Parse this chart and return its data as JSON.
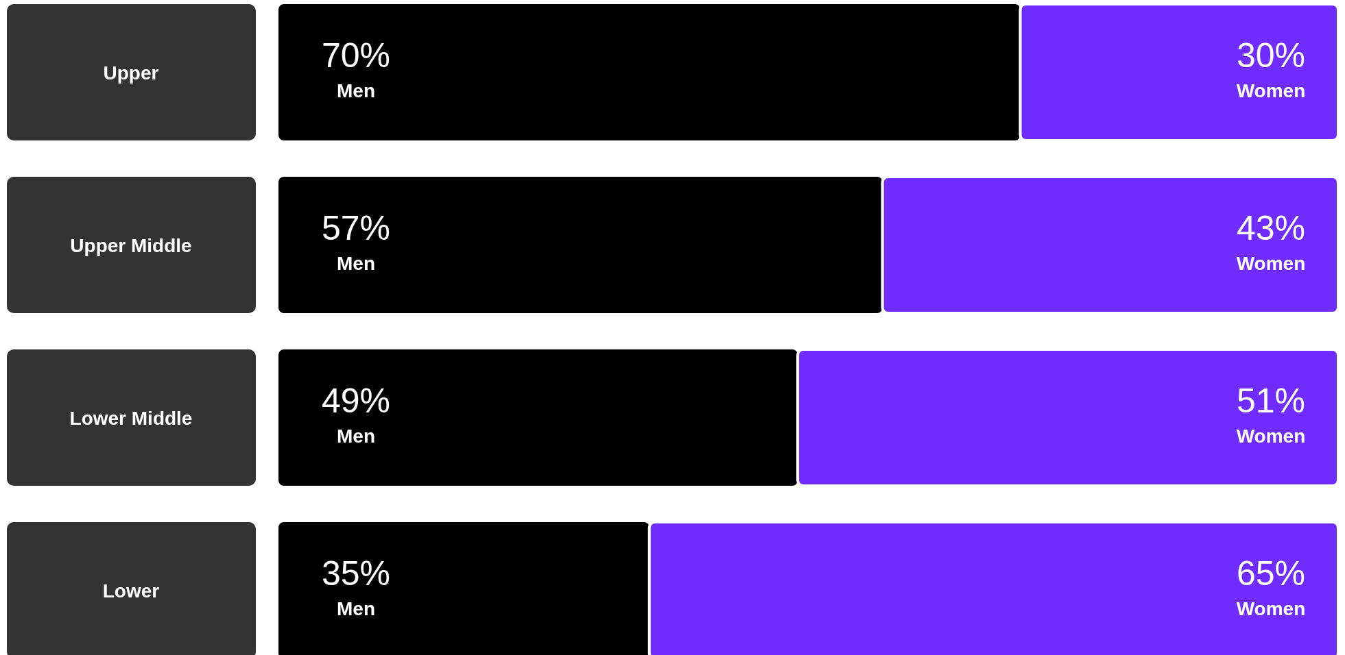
{
  "chart_data": {
    "type": "bar",
    "orientation": "horizontal",
    "stacked": true,
    "categories": [
      "Upper",
      "Upper Middle",
      "Lower Middle",
      "Lower"
    ],
    "xlim": [
      0,
      100
    ],
    "series": [
      {
        "name": "Men",
        "color": "#000000",
        "values": [
          70,
          57,
          49,
          35
        ],
        "value_labels": [
          "70%",
          "57%",
          "49%",
          "35%"
        ]
      },
      {
        "name": "Women",
        "color": "#6e2cff",
        "values": [
          30,
          43,
          51,
          65
        ],
        "value_labels": [
          "30%",
          "43%",
          "51%",
          "65%"
        ]
      }
    ]
  }
}
